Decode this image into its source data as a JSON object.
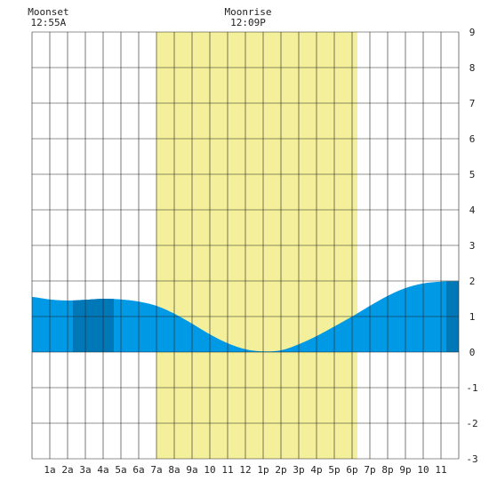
{
  "chart_data": {
    "type": "area",
    "title": "",
    "xlabel": "",
    "ylabel": "",
    "x_tick_labels": [
      "1a",
      "2a",
      "3a",
      "4a",
      "5a",
      "6a",
      "7a",
      "8a",
      "9a",
      "10",
      "11",
      "12",
      "1p",
      "2p",
      "3p",
      "4p",
      "5p",
      "6p",
      "7p",
      "8p",
      "9p",
      "10",
      "11"
    ],
    "xlim_hours": [
      0,
      24
    ],
    "ylim": [
      -3,
      9
    ],
    "y_ticks": [
      -3,
      -2,
      -1,
      0,
      1,
      2,
      3,
      4,
      5,
      6,
      7,
      8,
      9
    ],
    "grid": true,
    "daylight_hours": [
      7.0,
      18.3
    ],
    "tide_curve": {
      "x_hours": [
        0,
        1,
        2,
        3,
        4,
        5,
        6,
        7,
        8,
        9,
        10,
        11,
        12,
        13,
        14,
        15,
        16,
        17,
        18,
        19,
        20,
        21,
        22,
        23,
        23.3,
        24
      ],
      "y_feet": [
        1.55,
        1.48,
        1.45,
        1.47,
        1.5,
        1.48,
        1.42,
        1.3,
        1.08,
        0.8,
        0.5,
        0.25,
        0.08,
        0.02,
        0.05,
        0.22,
        0.45,
        0.72,
        1.0,
        1.3,
        1.58,
        1.8,
        1.93,
        1.98,
        1.99,
        1.99
      ]
    },
    "dark_bands_hours": [
      [
        2.3,
        4.6
      ],
      [
        23.3,
        24
      ]
    ],
    "colors": {
      "daylight": "#f3ef9a",
      "tide": "#0099e6",
      "tide_dark": "#0078b8",
      "grid": "#222222"
    },
    "annotations": [
      {
        "label": "Moonset",
        "time": "12:55A",
        "hour": 0.92
      },
      {
        "label": "Moonrise",
        "time": "12:09P",
        "hour": 12.15
      }
    ]
  }
}
